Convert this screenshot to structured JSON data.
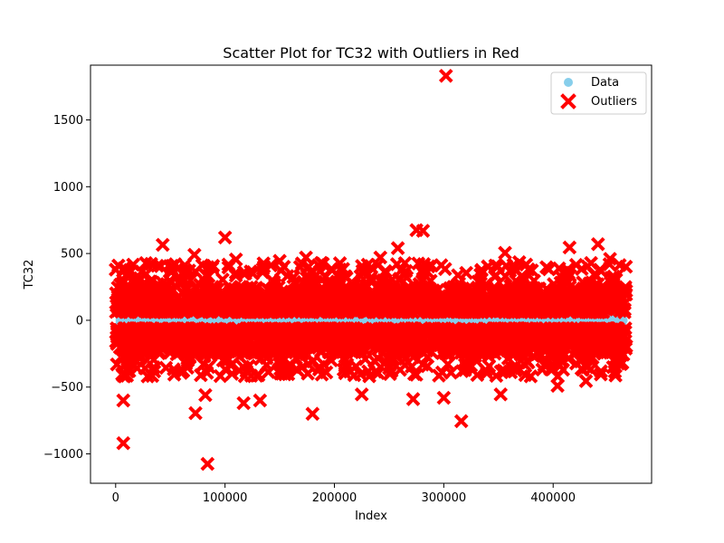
{
  "chart_data": {
    "type": "scatter",
    "title": "Scatter Plot for TC32 with Outliers in Red",
    "xlabel": "Index",
    "ylabel": "TC32",
    "xlim": [
      -23000,
      490000
    ],
    "ylim": [
      -1220,
      1910
    ],
    "x_ticks": [
      0,
      100000,
      200000,
      300000,
      400000
    ],
    "x_tick_labels": [
      "0",
      "100000",
      "200000",
      "300000",
      "400000"
    ],
    "y_ticks": [
      -1000,
      -500,
      0,
      500,
      1000,
      1500
    ],
    "y_tick_labels": [
      "−1000",
      "−500",
      "0",
      "500",
      "1000",
      "1500"
    ],
    "grid": false,
    "legend_position": "top-right",
    "x_range": [
      0,
      467000
    ],
    "series": [
      {
        "name": "Data",
        "color": "#87ceeb",
        "marker": "circle",
        "y_band": [
          -50,
          50
        ],
        "description": "dense band of points across full index range"
      },
      {
        "name": "Outliers",
        "color": "#ff0000",
        "marker": "x",
        "upper_band": [
          60,
          250
        ],
        "lower_band": [
          -250,
          -60
        ],
        "highlighted_points": [
          {
            "x": 2500,
            "y": 410
          },
          {
            "x": 7000,
            "y": -920
          },
          {
            "x": 7000,
            "y": -600
          },
          {
            "x": 8000,
            "y": -420
          },
          {
            "x": 43000,
            "y": 565
          },
          {
            "x": 72000,
            "y": 490
          },
          {
            "x": 73000,
            "y": -695
          },
          {
            "x": 82000,
            "y": -560
          },
          {
            "x": 84000,
            "y": -1075
          },
          {
            "x": 100000,
            "y": 620
          },
          {
            "x": 110000,
            "y": 455
          },
          {
            "x": 117000,
            "y": -620
          },
          {
            "x": 132000,
            "y": -600
          },
          {
            "x": 150000,
            "y": 445
          },
          {
            "x": 174000,
            "y": 470
          },
          {
            "x": 180000,
            "y": -700
          },
          {
            "x": 188000,
            "y": 430
          },
          {
            "x": 225000,
            "y": -555
          },
          {
            "x": 242000,
            "y": 470
          },
          {
            "x": 258000,
            "y": 540
          },
          {
            "x": 272000,
            "y": -590
          },
          {
            "x": 275000,
            "y": 675
          },
          {
            "x": 281000,
            "y": 670
          },
          {
            "x": 300000,
            "y": -580
          },
          {
            "x": 302000,
            "y": 1830
          },
          {
            "x": 316000,
            "y": -755
          },
          {
            "x": 352000,
            "y": -555
          },
          {
            "x": 356000,
            "y": 505
          },
          {
            "x": 369000,
            "y": 435
          },
          {
            "x": 404000,
            "y": -490
          },
          {
            "x": 415000,
            "y": 545
          },
          {
            "x": 430000,
            "y": -455
          },
          {
            "x": 441000,
            "y": 570
          },
          {
            "x": 452000,
            "y": 460
          }
        ]
      }
    ]
  }
}
